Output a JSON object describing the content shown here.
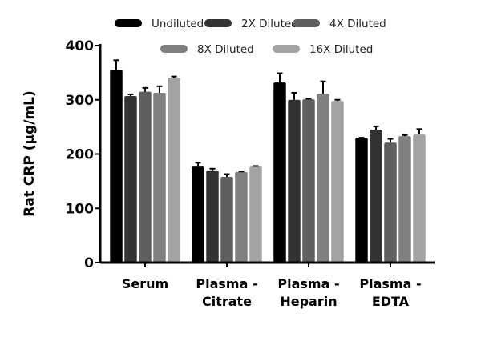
{
  "chart_data": {
    "type": "bar",
    "title": "",
    "xlabel": "",
    "ylabel": "Rat CRP (µg/mL)",
    "ylim": [
      0,
      400
    ],
    "yticks": [
      "0",
      "100",
      "200",
      "300",
      "400"
    ],
    "categories": [
      "Serum",
      "Plasma -\nCitrate",
      "Plasma -\nHeparin",
      "Plasma -\nEDTA"
    ],
    "legend_position": "top",
    "grid": false,
    "series": [
      {
        "name": "Undiluted",
        "color": "#000000",
        "values": [
          355,
          177,
          332,
          230
        ],
        "errors": [
          18,
          7,
          17,
          0
        ]
      },
      {
        "name": "2X Diluted",
        "color": "#333333",
        "values": [
          307,
          170,
          300,
          245
        ],
        "errors": [
          3,
          3,
          13,
          6
        ]
      },
      {
        "name": "4X Diluted",
        "color": "#5f5f5f",
        "values": [
          315,
          158,
          301,
          221
        ],
        "errors": [
          7,
          5,
          1,
          7
        ]
      },
      {
        "name": "8X Diluted",
        "color": "#808080",
        "values": [
          313,
          167,
          311,
          233
        ],
        "errors": [
          12,
          1,
          23,
          2
        ]
      },
      {
        "name": "16X Diluted",
        "color": "#a3a3a3",
        "values": [
          341,
          177,
          298,
          236
        ],
        "errors": [
          2,
          1,
          2,
          10
        ]
      }
    ]
  }
}
